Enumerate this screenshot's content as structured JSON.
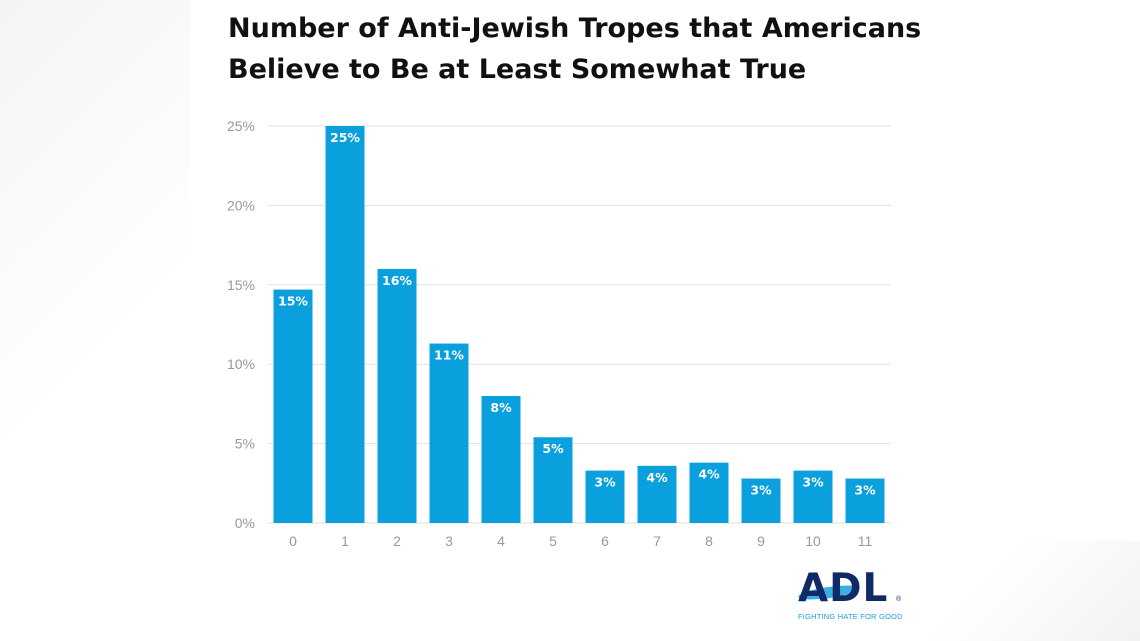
{
  "title_lines": [
    "Number of Anti-Jewish Tropes that Americans",
    "Believe to Be at Least Somewhat True"
  ],
  "chart_data": {
    "type": "bar",
    "title": "Number of Anti-Jewish Tropes that Americans Believe to Be at Least Somewhat True",
    "categories": [
      "0",
      "1",
      "2",
      "3",
      "4",
      "5",
      "6",
      "7",
      "8",
      "9",
      "10",
      "11"
    ],
    "values": [
      14.7,
      25.0,
      16.0,
      11.3,
      8.0,
      5.4,
      3.3,
      3.6,
      3.8,
      2.8,
      3.3,
      2.8
    ],
    "data_labels": [
      "15%",
      "25%",
      "16%",
      "11%",
      "8%",
      "5%",
      "3%",
      "4%",
      "4%",
      "3%",
      "3%",
      "3%"
    ],
    "ylim": [
      0,
      25
    ],
    "yticks": [
      0,
      5,
      10,
      15,
      20,
      25
    ],
    "ytick_labels": [
      "0%",
      "5%",
      "10%",
      "15%",
      "20%",
      "25%"
    ],
    "grid": true,
    "bar_color": "#0aa0de",
    "label_color": "#ffffff",
    "grid_color": "#e2e2e2",
    "tick_color": "#999999"
  },
  "logo": {
    "name": "ADL",
    "tagline": "FIGHTING HATE FOR GOOD",
    "reg": "®",
    "colors": {
      "mark": "#0f2a67",
      "accent": "#1aa0dc"
    }
  }
}
